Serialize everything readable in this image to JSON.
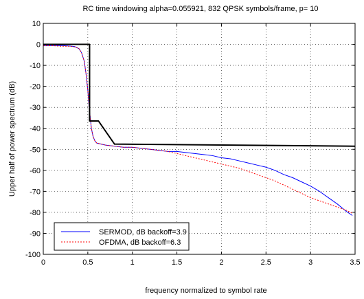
{
  "chart_data": {
    "type": "line",
    "title": "RC time windowing alpha=0.055921,  832 QPSK symbols/frame,  p= 10",
    "xlabel": "frequency normalized to symbol rate",
    "ylabel": "Upper half of power spectrum (dB)",
    "xlim": [
      0,
      3.5
    ],
    "ylim": [
      -100,
      10
    ],
    "x_ticks": [
      0,
      0.5,
      1,
      1.5,
      2,
      2.5,
      3,
      3.5
    ],
    "x_tick_labels": [
      "0",
      "0.5",
      "1",
      "1.5",
      "2",
      "2.5",
      "3",
      "3.5"
    ],
    "y_ticks": [
      10,
      0,
      -10,
      -20,
      -30,
      -40,
      -50,
      -60,
      -70,
      -80,
      -90,
      -100
    ],
    "y_tick_labels": [
      "10",
      "0",
      "-10",
      "-20",
      "-30",
      "-40",
      "-50",
      "-60",
      "-70",
      "-80",
      "-90",
      "-100"
    ],
    "grid": true,
    "legend_position": "bottom-left",
    "series": [
      {
        "name": "SERMOD, dB backoff=3.9",
        "color": "#0000ff",
        "dash": "solid",
        "x": [
          0,
          0.1,
          0.2,
          0.3,
          0.35,
          0.4,
          0.43,
          0.46,
          0.48,
          0.5,
          0.52,
          0.54,
          0.56,
          0.58,
          0.6,
          0.65,
          0.7,
          0.8,
          0.9,
          1.0,
          1.1,
          1.2,
          1.3,
          1.4,
          1.5,
          1.6,
          1.7,
          1.8,
          1.9,
          2.0,
          2.1,
          2.2,
          2.3,
          2.4,
          2.5,
          2.6,
          2.7,
          2.8,
          2.9,
          3.0,
          3.1,
          3.2,
          3.3,
          3.4,
          3.47
        ],
        "y": [
          -0.5,
          -0.6,
          -0.5,
          -0.8,
          -1,
          -2,
          -4,
          -8,
          -14,
          -22,
          -32,
          -40,
          -44,
          -46,
          -47,
          -47.5,
          -48,
          -48.5,
          -49,
          -49,
          -49.5,
          -50,
          -50.5,
          -51,
          -51,
          -51.5,
          -52,
          -52.5,
          -53,
          -54,
          -54.5,
          -55.5,
          -56.5,
          -57.5,
          -58.5,
          -60,
          -62,
          -63.5,
          -65.5,
          -67.5,
          -70,
          -73,
          -76,
          -79.5,
          -81.5
        ]
      },
      {
        "name": "OFDMA, dB backoff=6.3",
        "color": "#ff0000",
        "dash": "dotted",
        "x": [
          0,
          0.1,
          0.2,
          0.3,
          0.35,
          0.4,
          0.43,
          0.46,
          0.48,
          0.5,
          0.52,
          0.54,
          0.56,
          0.58,
          0.6,
          0.65,
          0.7,
          0.8,
          0.9,
          1.0,
          1.1,
          1.2,
          1.3,
          1.4,
          1.5,
          1.6,
          1.7,
          1.8,
          1.9,
          2.0,
          2.1,
          2.2,
          2.3,
          2.4,
          2.5,
          2.6,
          2.7,
          2.8,
          2.9,
          3.0,
          3.1,
          3.2,
          3.3,
          3.4,
          3.47
        ],
        "y": [
          -0.7,
          -0.6,
          -0.9,
          -0.9,
          -1.2,
          -2,
          -4,
          -8,
          -14,
          -22,
          -32,
          -40,
          -44,
          -46,
          -47,
          -47.5,
          -48,
          -48.5,
          -49,
          -49,
          -49.5,
          -50,
          -50.5,
          -51,
          -52,
          -53,
          -54,
          -55,
          -56,
          -57,
          -58,
          -59,
          -60.5,
          -62,
          -63.5,
          -65,
          -67,
          -69,
          -71,
          -73,
          -74.5,
          -76,
          -77.5,
          -79,
          -80.5
        ]
      },
      {
        "color": "#000000",
        "dash": "solid",
        "x": [
          0,
          0.52,
          0.52,
          0.62,
          0.8,
          3.5
        ],
        "y": [
          0,
          0,
          -36.5,
          -36.5,
          -47.5,
          -48.5
        ]
      }
    ]
  }
}
